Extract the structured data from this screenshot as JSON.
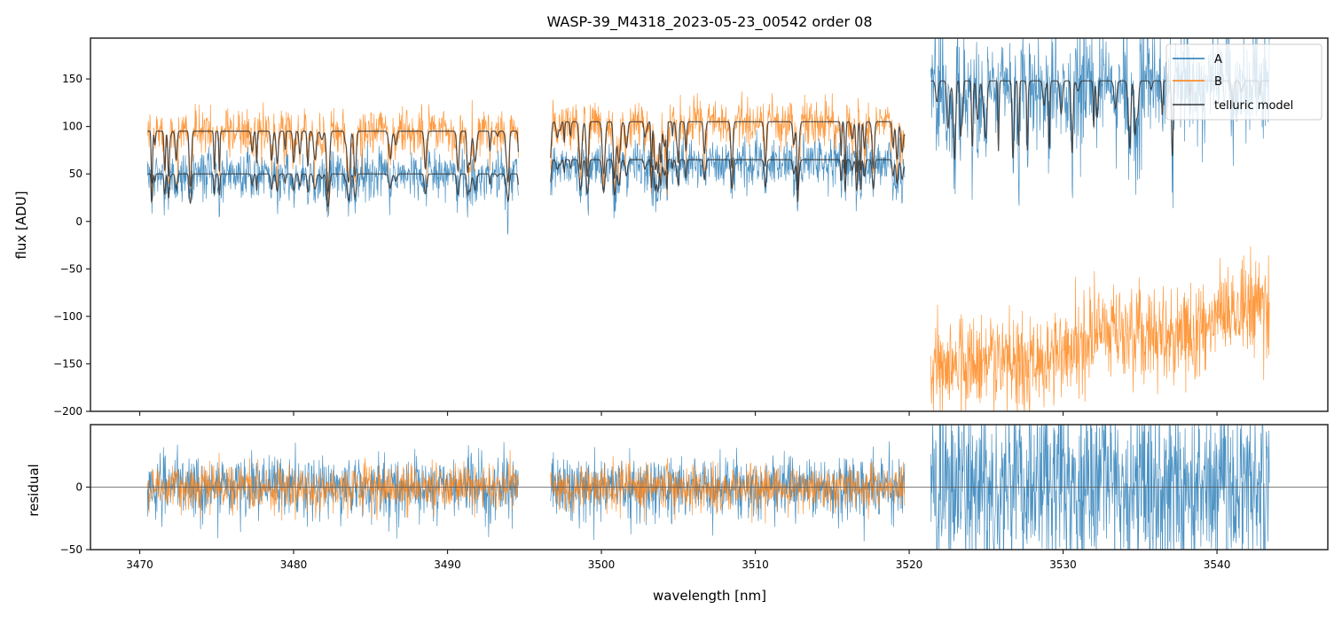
{
  "chart_data": [
    {
      "panel": "flux",
      "type": "line",
      "title": "WASP-39_M4318_2023-05-23_00542  order 08",
      "xlabel": "",
      "ylabel": "flux [ADU]",
      "xlim": [
        3466.8,
        3547.2
      ],
      "ylim": [
        -200,
        193
      ],
      "xticks": [
        3470,
        3480,
        3490,
        3500,
        3510,
        3520,
        3530,
        3540
      ],
      "xtick_labels_visible": false,
      "yticks": [
        -200,
        -150,
        -100,
        -50,
        0,
        50,
        100,
        150
      ],
      "ytick_labels": [
        "−200",
        "−150",
        "−100",
        "−50",
        "0",
        "50",
        "100",
        "150"
      ],
      "grid": false,
      "legend": {
        "placement": "top-right",
        "entries": [
          {
            "label": "A",
            "color": "#1f77b4"
          },
          {
            "label": "B",
            "color": "#ff7f0e"
          },
          {
            "label": "telluric model",
            "color": "#333333"
          }
        ]
      },
      "segments": [
        {
          "x_range": [
            3470.5,
            3494.6
          ],
          "A_mean": 50,
          "A_noise": 12,
          "B_mean": 95,
          "B_noise": 12,
          "model_A": 50,
          "model_B": 95
        },
        {
          "x_range": [
            3496.7,
            3519.7
          ],
          "A_mean": 62,
          "A_noise": 12,
          "B_mean": 105,
          "B_noise": 12,
          "model_A": 65,
          "model_B": 105
        },
        {
          "x_range": [
            3521.4,
            3543.4
          ],
          "A_mean": 145,
          "A_noise": 30,
          "B_start": -160,
          "B_end": -95,
          "B_noise": 25,
          "model_A": 148,
          "model_B": null
        }
      ],
      "series": [
        {
          "name": "A",
          "color": "#1f77b4",
          "description": "spectrum A, ~50 ADU (3470.5-3494.6 nm), ~62 ADU (3496.7-3519.7 nm), ~145 ADU (3521.4-3543.4 nm)"
        },
        {
          "name": "B",
          "color": "#ff7f0e",
          "description": "spectrum B, ~95 ADU, ~105 ADU, then negative ~-160 rising to ~-95 ADU in third segment"
        },
        {
          "name": "telluric model",
          "color": "#333333",
          "description": "telluric absorption model overlaid on A and B continua"
        }
      ]
    },
    {
      "panel": "residual",
      "type": "line",
      "xlabel": "wavelength [nm]",
      "ylabel": "residual",
      "xlim": [
        3466.8,
        3547.2
      ],
      "ylim": [
        -50,
        50
      ],
      "xticks": [
        3470,
        3480,
        3490,
        3500,
        3510,
        3520,
        3530,
        3540
      ],
      "xtick_labels": [
        "3470",
        "3480",
        "3490",
        "3500",
        "3510",
        "3520",
        "3530",
        "3540"
      ],
      "yticks": [
        -50,
        0
      ],
      "ytick_labels": [
        "−50",
        "0"
      ],
      "zero_line": 0,
      "grid": false,
      "series": [
        {
          "name": "A",
          "color": "#1f77b4",
          "segments": [
            [
              3470.5,
              3494.6
            ],
            [
              3496.7,
              3519.7
            ],
            [
              3521.4,
              3543.4
            ]
          ],
          "noise_std": [
            12,
            12,
            35
          ]
        },
        {
          "name": "B",
          "color": "#ff7f0e",
          "segments": [
            [
              3470.5,
              3494.6
            ],
            [
              3496.7,
              3519.7
            ]
          ],
          "noise_std": [
            9,
            9
          ]
        }
      ]
    }
  ]
}
